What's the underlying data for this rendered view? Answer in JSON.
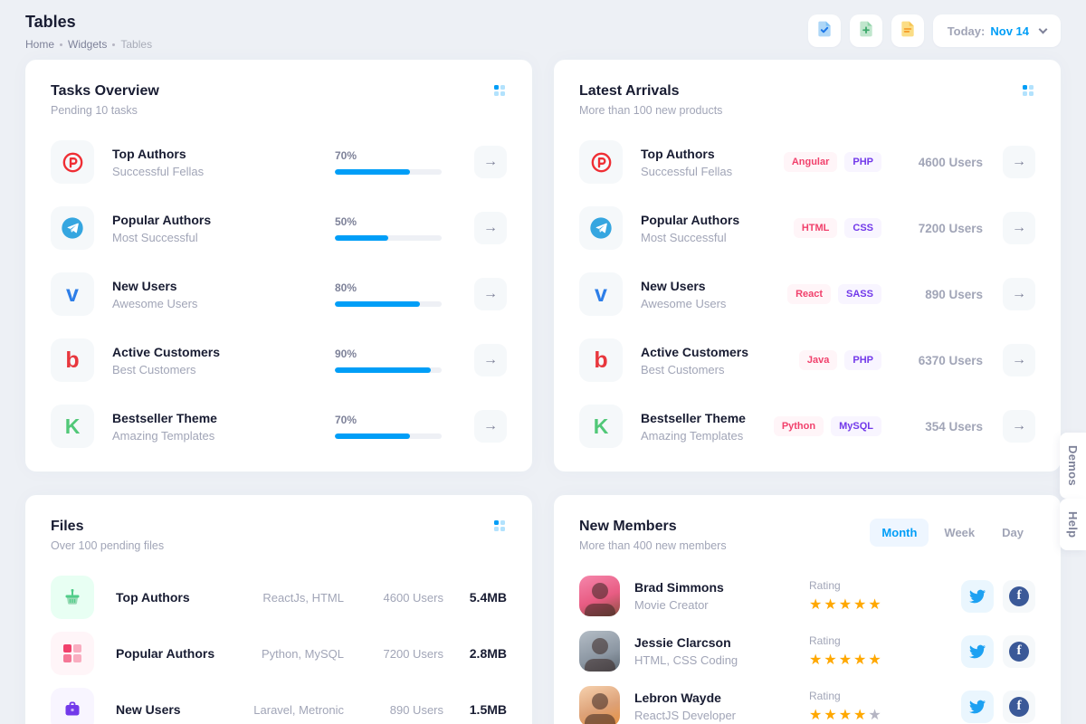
{
  "page": {
    "title": "Tables"
  },
  "breadcrumb": {
    "items": [
      "Home",
      "Widgets",
      "Tables"
    ]
  },
  "header": {
    "actions": [
      {
        "icon": "file-check-icon"
      },
      {
        "icon": "file-plus-icon"
      },
      {
        "icon": "file-lines-icon"
      }
    ],
    "today_label": "Today:",
    "today_value": "Nov 14"
  },
  "colors": {
    "accent": "#009ef7",
    "danger": "#f1416c",
    "purple": "#7239ea",
    "star": "#ffa800",
    "twitter": "#1da1f2",
    "facebook": "#3b5998"
  },
  "cards": {
    "tasks": {
      "title": "Tasks Overview",
      "subtitle": "Pending 10 tasks",
      "menu_icon": "dots-menu-icon",
      "rows": [
        {
          "icon": "producthunt-icon",
          "title": "Top Authors",
          "subtitle": "Successful Fellas",
          "percent": 70,
          "percent_label": "70%"
        },
        {
          "icon": "telegram-icon",
          "title": "Popular Authors",
          "subtitle": "Most Successful",
          "percent": 50,
          "percent_label": "50%"
        },
        {
          "icon": "vimeo-icon",
          "glyph": "v",
          "title": "New Users",
          "subtitle": "Awesome Users",
          "percent": 80,
          "percent_label": "80%"
        },
        {
          "icon": "bebo-icon",
          "glyph": "b",
          "title": "Active Customers",
          "subtitle": "Best Customers",
          "percent": 90,
          "percent_label": "90%"
        },
        {
          "icon": "kickstarter-icon",
          "glyph": "K",
          "title": "Bestseller Theme",
          "subtitle": "Amazing Templates",
          "percent": 70,
          "percent_label": "70%"
        }
      ]
    },
    "arrivals": {
      "title": "Latest Arrivals",
      "subtitle": "More than 100 new products",
      "menu_icon": "dots-menu-icon",
      "rows": [
        {
          "icon": "producthunt-icon",
          "title": "Top Authors",
          "subtitle": "Successful Fellas",
          "tags": [
            "Angular",
            "PHP"
          ],
          "users": "4600 Users"
        },
        {
          "icon": "telegram-icon",
          "title": "Popular Authors",
          "subtitle": "Most Successful",
          "tags": [
            "HTML",
            "CSS"
          ],
          "users": "7200 Users"
        },
        {
          "icon": "vimeo-icon",
          "glyph": "v",
          "title": "New Users",
          "subtitle": "Awesome Users",
          "tags": [
            "React",
            "SASS"
          ],
          "users": "890 Users"
        },
        {
          "icon": "bebo-icon",
          "glyph": "b",
          "title": "Active Customers",
          "subtitle": "Best Customers",
          "tags": [
            "Java",
            "PHP"
          ],
          "users": "6370 Users"
        },
        {
          "icon": "kickstarter-icon",
          "glyph": "K",
          "title": "Bestseller Theme",
          "subtitle": "Amazing Templates",
          "tags": [
            "Python",
            "MySQL"
          ],
          "users": "354 Users"
        }
      ]
    },
    "files": {
      "title": "Files",
      "subtitle": "Over 100 pending files",
      "menu_icon": "dots-menu-icon",
      "rows": [
        {
          "icon": "basket-icon",
          "title": "Top Authors",
          "tech": "ReactJs, HTML",
          "users": "4600 Users",
          "size": "5.4MB"
        },
        {
          "icon": "grid-icon",
          "title": "Popular Authors",
          "tech": "Python, MySQL",
          "users": "7200 Users",
          "size": "2.8MB"
        },
        {
          "icon": "briefcase-icon",
          "title": "New Users",
          "tech": "Laravel, Metronic",
          "users": "890 Users",
          "size": "1.5MB"
        }
      ]
    },
    "members": {
      "title": "New Members",
      "subtitle": "More than 400 new members",
      "tabs": [
        {
          "label": "Month",
          "active": true
        },
        {
          "label": "Week",
          "active": false
        },
        {
          "label": "Day",
          "active": false
        }
      ],
      "rating_label": "Rating",
      "rows": [
        {
          "name": "Brad Simmons",
          "role": "Movie Creator",
          "rating": 5,
          "socials": [
            "twitter-icon",
            "facebook-icon"
          ]
        },
        {
          "name": "Jessie Clarcson",
          "role": "HTML, CSS Coding",
          "rating": 5,
          "socials": [
            "twitter-icon",
            "facebook-icon"
          ]
        },
        {
          "name": "Lebron Wayde",
          "role": "ReactJS Developer",
          "rating": 4,
          "socials": [
            "twitter-icon",
            "facebook-icon"
          ]
        }
      ]
    }
  },
  "side_tabs": {
    "demos": "Demos",
    "help": "Help"
  }
}
